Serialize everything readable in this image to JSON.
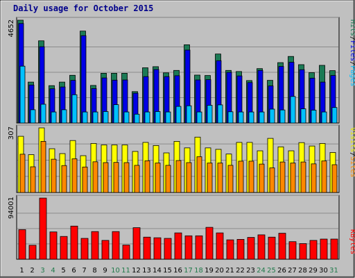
{
  "title": "Daily usage for October 2015",
  "colors": {
    "frame": "#c0c0c0",
    "plot_bg": "#c0c0c0",
    "hits": "#1b7a55",
    "files": "#0000e6",
    "pages": "#00c0ff",
    "visits": "#ffff00",
    "sites": "#ff8800",
    "kbytes": "#ff0000",
    "weekend": "#1f7a4a",
    "weekday": "#000000",
    "title": "#00008b"
  },
  "chart_data": [
    {
      "type": "bar",
      "name": "hits-files-pages",
      "categories": [
        "1",
        "2",
        "3",
        "4",
        "5",
        "6",
        "7",
        "8",
        "9",
        "10",
        "11",
        "12",
        "13",
        "14",
        "15",
        "16",
        "17",
        "18",
        "19",
        "20",
        "21",
        "22",
        "23",
        "24",
        "25",
        "26",
        "27",
        "28",
        "29",
        "30",
        "31"
      ],
      "ymax_label": "4652",
      "ylim": [
        0,
        4652
      ],
      "legend": [
        "Pages",
        "Files",
        "Hits"
      ],
      "series": [
        {
          "name": "Hits",
          "values": [
            4652,
            1850,
            3720,
            1690,
            1850,
            2160,
            4160,
            1700,
            2250,
            2250,
            2250,
            1420,
            2500,
            2550,
            2270,
            2380,
            3540,
            2170,
            2150,
            3120,
            2380,
            2330,
            1920,
            2460,
            1930,
            2730,
            3010,
            2640,
            2280,
            2610,
            2370
          ]
        },
        {
          "name": "Files",
          "values": [
            4500,
            1720,
            3450,
            1550,
            1630,
            1930,
            3950,
            1560,
            2040,
            1940,
            1950,
            1350,
            2100,
            2420,
            2100,
            2140,
            3300,
            1950,
            1960,
            2820,
            2290,
            2130,
            1830,
            2380,
            1680,
            2560,
            2750,
            2410,
            2030,
            1850,
            2150
          ]
        },
        {
          "name": "Pages",
          "values": [
            2570,
            600,
            850,
            500,
            600,
            1280,
            500,
            500,
            520,
            830,
            500,
            400,
            500,
            520,
            500,
            750,
            780,
            500,
            800,
            820,
            510,
            500,
            500,
            500,
            630,
            590,
            1200,
            640,
            580,
            500,
            700
          ]
        }
      ]
    },
    {
      "type": "bar",
      "name": "visits-sites",
      "categories": [
        "1",
        "2",
        "3",
        "4",
        "5",
        "6",
        "7",
        "8",
        "9",
        "10",
        "11",
        "12",
        "13",
        "14",
        "15",
        "16",
        "17",
        "18",
        "19",
        "20",
        "21",
        "22",
        "23",
        "24",
        "25",
        "26",
        "27",
        "28",
        "29",
        "30",
        "31"
      ],
      "ymax_label": "307",
      "ylim": [
        0,
        307
      ],
      "legend": [
        "Sites",
        "Visits"
      ],
      "series": [
        {
          "name": "Visits",
          "values": [
            267,
            180,
            307,
            208,
            185,
            247,
            175,
            233,
            226,
            226,
            226,
            195,
            238,
            223,
            188,
            243,
            212,
            263,
            212,
            205,
            183,
            238,
            238,
            198,
            257,
            217,
            198,
            237,
            221,
            233,
            190
          ]
        },
        {
          "name": "Sites",
          "values": [
            182,
            122,
            243,
            158,
            128,
            160,
            121,
            146,
            142,
            143,
            142,
            129,
            151,
            140,
            129,
            152,
            142,
            170,
            140,
            140,
            129,
            149,
            149,
            135,
            117,
            145,
            140,
            145,
            136,
            150,
            132
          ]
        }
      ]
    },
    {
      "type": "bar",
      "name": "kbytes",
      "categories": [
        "1",
        "2",
        "3",
        "4",
        "5",
        "6",
        "7",
        "8",
        "9",
        "10",
        "11",
        "12",
        "13",
        "14",
        "15",
        "16",
        "17",
        "18",
        "19",
        "20",
        "21",
        "22",
        "23",
        "24",
        "25",
        "26",
        "27",
        "28",
        "29",
        "30",
        "31"
      ],
      "ymax_label": "94001",
      "ylim": [
        0,
        94001
      ],
      "legend": [
        "KBytes"
      ],
      "series": [
        {
          "name": "KBytes",
          "values": [
            45500,
            21500,
            94001,
            42000,
            35000,
            51000,
            32000,
            42500,
            29000,
            42500,
            21800,
            48500,
            34000,
            33000,
            32000,
            40500,
            36000,
            36000,
            49000,
            40500,
            29800,
            30500,
            33500,
            37500,
            34000,
            40000,
            27000,
            24000,
            29000,
            31000,
            31000
          ]
        }
      ]
    }
  ],
  "x_weekend_days": [
    3,
    4,
    10,
    11,
    17,
    18,
    24,
    25,
    31
  ]
}
